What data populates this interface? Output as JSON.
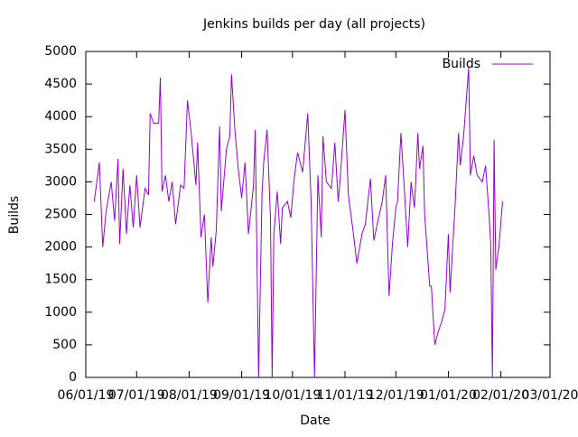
{
  "chart_data": {
    "type": "line",
    "title": "Jenkins builds per day (all projects)",
    "x_label": "Date",
    "y_label": "Builds",
    "x": [
      "06/06/19",
      "06/09/19",
      "06/11/19",
      "06/13/19",
      "06/16/19",
      "06/18/19",
      "06/20/19",
      "06/21/19",
      "06/23/19",
      "06/25/19",
      "06/27/19",
      "06/29/19",
      "07/01/19",
      "07/03/19",
      "07/06/19",
      "07/08/19",
      "07/09/19",
      "07/11/19",
      "07/14/19",
      "07/15/19",
      "07/16/19",
      "07/18/19",
      "07/20/19",
      "07/22/19",
      "07/24/19",
      "07/27/19",
      "07/29/19",
      "07/31/19",
      "08/02/19",
      "08/05/19",
      "08/06/19",
      "08/08/19",
      "08/10/19",
      "08/12/19",
      "08/14/19",
      "08/15/19",
      "08/17/19",
      "08/19/19",
      "08/20/19",
      "08/23/19",
      "08/25/19",
      "08/26/19",
      "08/28/19",
      "08/30/19",
      "09/01/19",
      "09/03/19",
      "09/05/19",
      "09/08/19",
      "09/09/19",
      "09/11/19",
      "09/13/19",
      "09/14/19",
      "09/16/19",
      "09/18/19",
      "09/19/19",
      "09/20/19",
      "09/22/19",
      "09/24/19",
      "09/25/19",
      "09/28/19",
      "09/30/19",
      "10/02/19",
      "10/04/19",
      "10/07/19",
      "10/10/19",
      "10/12/19",
      "10/14/19",
      "10/16/19",
      "10/18/19",
      "10/19/19",
      "10/21/19",
      "10/24/19",
      "10/26/19",
      "10/28/19",
      "10/29/19",
      "11/01/19",
      "11/03/19",
      "11/06/19",
      "11/08/19",
      "11/11/19",
      "11/13/19",
      "11/16/19",
      "11/18/19",
      "11/20/19",
      "11/23/19",
      "11/25/19",
      "11/27/19",
      "11/29/19",
      "12/01/19",
      "12/02/19",
      "12/04/19",
      "12/06/19",
      "12/08/19",
      "12/10/19",
      "12/12/19",
      "12/14/19",
      "12/15/19",
      "12/17/19",
      "12/18/19",
      "12/21/19",
      "12/22/19",
      "12/24/19",
      "12/26/19",
      "12/28/19",
      "12/30/19",
      "01/01/20",
      "01/02/20",
      "01/05/20",
      "01/07/20",
      "01/08/20",
      "01/10/20",
      "01/13/20",
      "01/14/20",
      "01/16/20",
      "01/18/20",
      "01/21/20",
      "01/23/20",
      "01/25/20",
      "01/26/20",
      "01/27/20",
      "01/28/20",
      "01/29/20",
      "01/31/20",
      "02/02/20"
    ],
    "series": [
      {
        "name": "Builds",
        "color": "#9400d3",
        "values": [
          2700,
          3300,
          2000,
          2550,
          3000,
          2400,
          3350,
          2050,
          3200,
          2200,
          2950,
          2300,
          3100,
          2300,
          2900,
          2800,
          4050,
          3900,
          3900,
          4600,
          2850,
          3100,
          2700,
          3000,
          2350,
          2950,
          2900,
          4250,
          3800,
          2950,
          3600,
          2150,
          2500,
          1150,
          2150,
          1700,
          2250,
          3850,
          2550,
          3500,
          3700,
          4650,
          3800,
          3200,
          2750,
          3300,
          2200,
          2950,
          3800,
          0,
          2800,
          3300,
          3800,
          2450,
          0,
          2200,
          2850,
          2050,
          2600,
          2700,
          2450,
          3050,
          3450,
          3150,
          4050,
          2700,
          0,
          3100,
          2150,
          3700,
          3000,
          2900,
          3600,
          2700,
          3000,
          4100,
          2800,
          2200,
          1750,
          2200,
          2350,
          3050,
          2100,
          2350,
          2700,
          3100,
          1250,
          2050,
          2600,
          2700,
          3750,
          2900,
          2000,
          3000,
          2600,
          3750,
          3200,
          3550,
          2500,
          1400,
          1400,
          500,
          700,
          850,
          1050,
          2200,
          1300,
          2650,
          3750,
          3250,
          3700,
          4750,
          3100,
          3400,
          3100,
          3000,
          3250,
          2500,
          2050,
          0,
          3650,
          1650,
          2050,
          2700
        ]
      }
    ],
    "xlim": [
      "06/01/19",
      "03/01/20"
    ],
    "xticks": [
      "06/01/19",
      "07/01/19",
      "08/01/19",
      "09/01/19",
      "10/01/19",
      "11/01/19",
      "12/01/19",
      "01/01/20",
      "02/01/20",
      "03/01/20"
    ],
    "ylim": [
      0,
      5000
    ],
    "yticks": [
      0,
      500,
      1000,
      1500,
      2000,
      2500,
      3000,
      3500,
      4000,
      4500,
      5000
    ],
    "legend": "top right"
  }
}
